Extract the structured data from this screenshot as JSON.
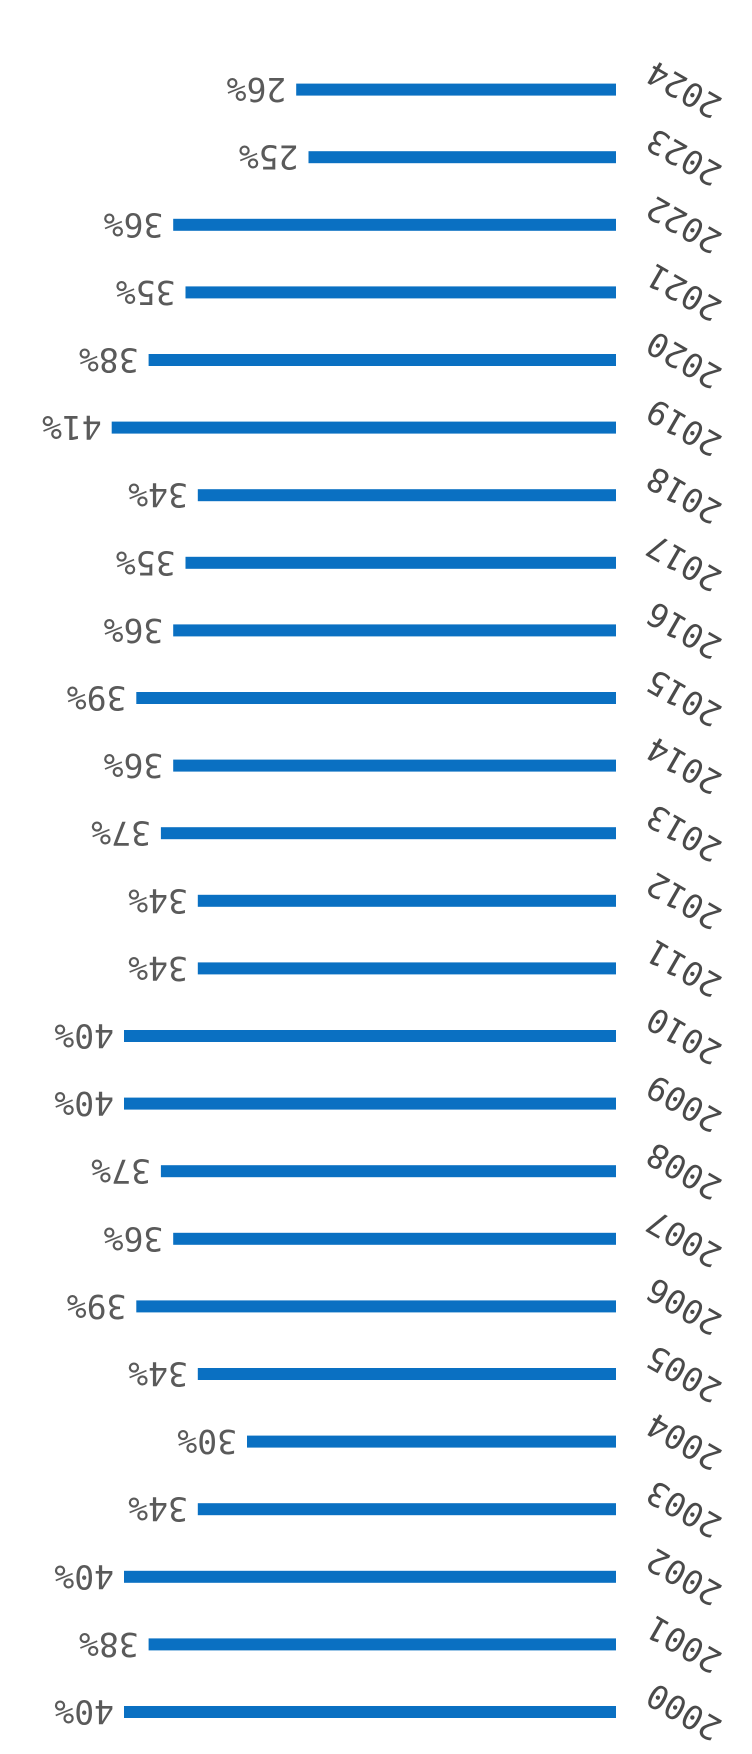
{
  "chart_data": {
    "type": "bar",
    "orientation": "horizontal",
    "render_rotation": "180deg",
    "color": "#0a70c2",
    "categories": [
      "2000",
      "2001",
      "2002",
      "2003",
      "2004",
      "2005",
      "2006",
      "2007",
      "2008",
      "2009",
      "2010",
      "2011",
      "2012",
      "2013",
      "2014",
      "2015",
      "2016",
      "2017",
      "2018",
      "2019",
      "2020",
      "2021",
      "2022",
      "2023",
      "2024"
    ],
    "values": [
      40,
      38,
      40,
      34,
      30,
      34,
      39,
      36,
      37,
      40,
      40,
      34,
      34,
      37,
      36,
      39,
      36,
      35,
      34,
      41,
      38,
      35,
      36,
      25,
      26
    ],
    "value_labels": [
      "40%",
      "38%",
      "40%",
      "34%",
      "30%",
      "34%",
      "39%",
      "36%",
      "37%",
      "40%",
      "40%",
      "34%",
      "34%",
      "37%",
      "36%",
      "39%",
      "36%",
      "35%",
      "34%",
      "41%",
      "38%",
      "35%",
      "36%",
      "25%",
      "26%"
    ],
    "grid": false,
    "legend": "none"
  }
}
